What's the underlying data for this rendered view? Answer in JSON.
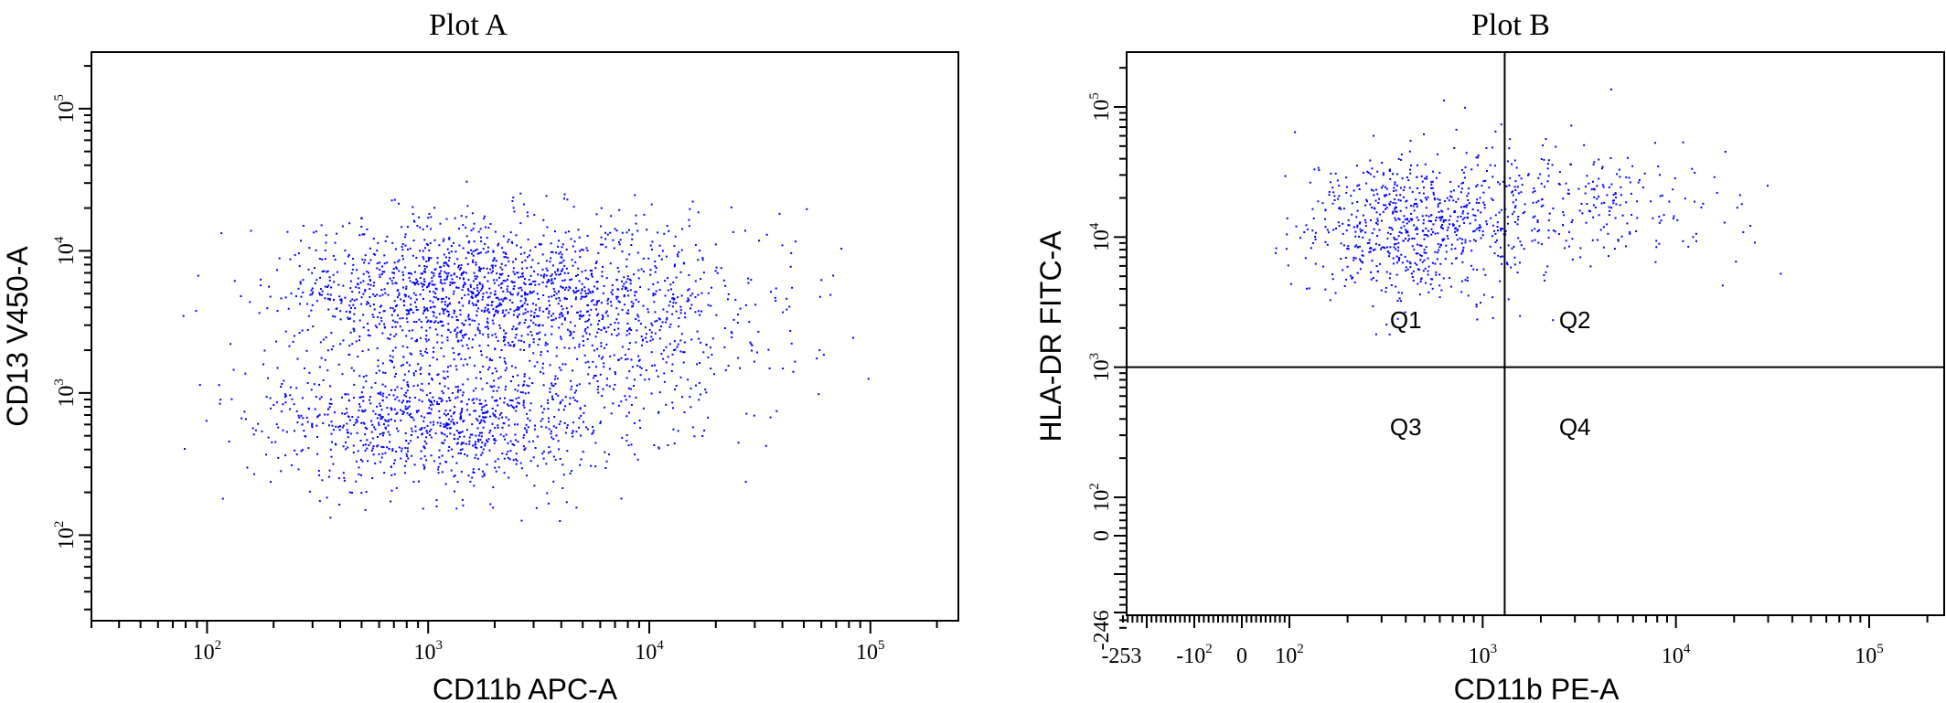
{
  "colors": {
    "points": "#0000ff",
    "axes": "#000000",
    "background": "#ffffff"
  },
  "chart_data": [
    {
      "type": "scatter",
      "title": "Plot A",
      "xlabel": "CD11b APC-A",
      "ylabel": "CD13 V450-A",
      "xscale": "log",
      "yscale": "log",
      "xlim": [
        30,
        250000
      ],
      "ylim": [
        25,
        250000
      ],
      "x_ticks": [
        {
          "base": "10",
          "exp": "2",
          "value": 100
        },
        {
          "base": "10",
          "exp": "3",
          "value": 1000
        },
        {
          "base": "10",
          "exp": "4",
          "value": 10000
        },
        {
          "base": "10",
          "exp": "5",
          "value": 100000
        }
      ],
      "y_ticks": [
        {
          "base": "10",
          "exp": "2",
          "value": 100
        },
        {
          "base": "10",
          "exp": "3",
          "value": 1000
        },
        {
          "base": "10",
          "exp": "4",
          "value": 10000
        },
        {
          "base": "10",
          "exp": "5",
          "value": 100000
        }
      ],
      "populations": [
        {
          "n": 1300,
          "cx_log": 3.15,
          "cy_log": 3.7,
          "sx": 0.42,
          "sy": 0.26
        },
        {
          "n": 1000,
          "cx_log": 3.05,
          "cy_log": 2.8,
          "sx": 0.42,
          "sy": 0.22
        },
        {
          "n": 650,
          "cx_log": 3.85,
          "cy_log": 3.55,
          "sx": 0.4,
          "sy": 0.35
        }
      ],
      "grid": false,
      "legend": "none"
    },
    {
      "type": "scatter",
      "title": "Plot B",
      "xlabel": "CD11b PE-A",
      "ylabel": "HLA-DR FITC-A",
      "xscale": "biexponential",
      "yscale": "biexponential",
      "xlim": [
        -253,
        262144
      ],
      "ylim": [
        -246,
        262144
      ],
      "x_ticks": [
        {
          "text": "-253",
          "value": -253
        },
        {
          "base": "-10",
          "exp": "2",
          "value": -100
        },
        {
          "text": "0",
          "value": 0
        },
        {
          "base": "10",
          "exp": "2",
          "value": 100
        },
        {
          "base": "10",
          "exp": "3",
          "value": 1000
        },
        {
          "base": "10",
          "exp": "4",
          "value": 10000
        },
        {
          "base": "10",
          "exp": "5",
          "value": 100000
        }
      ],
      "y_ticks": [
        {
          "text": "-246",
          "value": -246
        },
        {
          "text": "0",
          "value": 0
        },
        {
          "base": "10",
          "exp": "2",
          "value": 100
        },
        {
          "base": "10",
          "exp": "3",
          "value": 1000
        },
        {
          "base": "10",
          "exp": "4",
          "value": 10000
        },
        {
          "base": "10",
          "exp": "5",
          "value": 100000
        }
      ],
      "quadrant_gate": {
        "x": 1300,
        "y": 1000
      },
      "quadrants": [
        {
          "label": "Q1",
          "x": 400,
          "y": 2000
        },
        {
          "label": "Q2",
          "x": 3000,
          "y": 2000
        },
        {
          "label": "Q3",
          "x": 400,
          "y": 300
        },
        {
          "label": "Q4",
          "x": 3000,
          "y": 300
        }
      ],
      "populations": [
        {
          "n": 750,
          "cx_log": 2.65,
          "cy_log": 4.1,
          "sx": 0.3,
          "sy": 0.28
        },
        {
          "n": 230,
          "cx_log": 3.55,
          "cy_log": 4.25,
          "sx": 0.35,
          "sy": 0.22
        }
      ],
      "grid": false,
      "legend": "none"
    }
  ]
}
